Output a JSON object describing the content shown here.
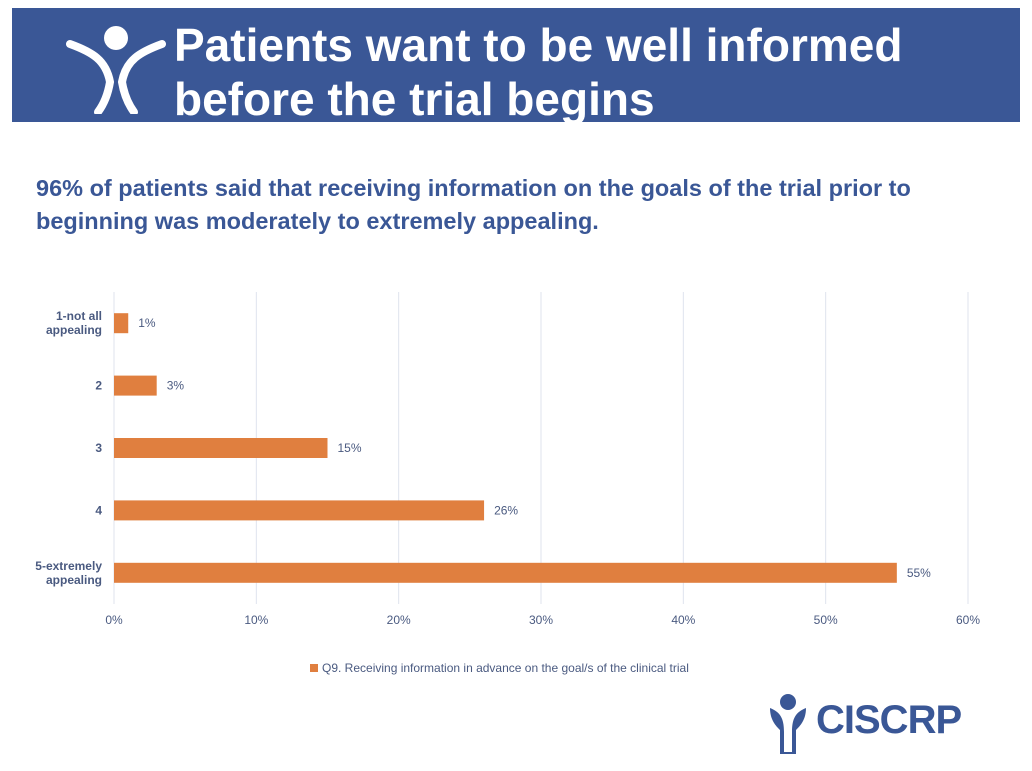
{
  "header": {
    "title": "Patients want to be well informed\nbefore the trial begins",
    "logo_icon": "person-figure-icon"
  },
  "subtitle": "96% of patients said that receiving information on the goals of the trial prior to beginning was moderately to extremely appealing.",
  "chart_data": {
    "type": "bar",
    "orientation": "horizontal",
    "categories": [
      "1-not all appealing",
      "2",
      "3",
      "4",
      "5-extremely appealing"
    ],
    "category_lines": [
      [
        "1-not all",
        "appealing"
      ],
      [
        "2"
      ],
      [
        "3"
      ],
      [
        "4"
      ],
      [
        "5-extremely",
        "appealing"
      ]
    ],
    "series": [
      {
        "name": "Q9. Receiving information in advance on the goal/s of the clinical trial",
        "values": [
          1,
          3,
          15,
          26,
          55
        ],
        "color": "#e07f3f"
      }
    ],
    "value_labels": [
      "1%",
      "3%",
      "15%",
      "26%",
      "55%"
    ],
    "x_ticks": [
      "0%",
      "10%",
      "20%",
      "30%",
      "40%",
      "50%",
      "60%"
    ],
    "xlim": [
      0,
      60
    ],
    "grid": true,
    "legend_position": "bottom",
    "colors": {
      "bar": "#e07f3f",
      "grid": "#dfe3ee",
      "text": "#4a5a80"
    }
  },
  "footer": {
    "logo_text": "CISCRP",
    "logo_icon": "ciscrp-logo-icon"
  }
}
